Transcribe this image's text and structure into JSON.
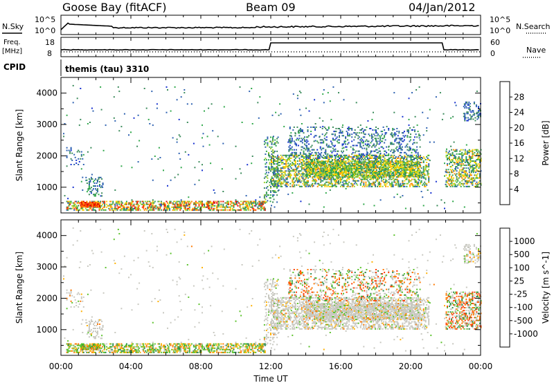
{
  "header": {
    "station": "Goose Bay (fitACF)",
    "beam": "Beam 09",
    "date": "04/Jan/2012"
  },
  "noise_panel": {
    "left_label": "N.Sky",
    "right_label": "N.Search",
    "left_ticks": [
      "10^5",
      "10^0"
    ],
    "right_ticks": [
      "10^5",
      "10^0"
    ]
  },
  "freq_panel": {
    "left_label": "Freq.",
    "left_unit": "[MHz]",
    "left_ticks": [
      "18",
      "8"
    ],
    "right_label": "Nave",
    "right_ticks": [
      "60",
      "0"
    ]
  },
  "cpid": {
    "label": "CPID",
    "value": "themis (tau) 3310"
  },
  "colors": {
    "power": [
      "#1530d0",
      "#2c60b0",
      "#3a8a5a",
      "#2fa84a",
      "#9bd02a",
      "#ffd000",
      "#ff8c00",
      "#ff3a00",
      "#e00000"
    ],
    "velocity": [
      "#1530c0",
      "#2a60b8",
      "#2a8a4a",
      "#5ac22a",
      "#c8c8c0",
      "#ffb000",
      "#ff7800",
      "#ff3a00",
      "#e00000"
    ],
    "gray_scatter": "#c8c8c0"
  },
  "chart_data": [
    {
      "type": "heatmap",
      "name": "power",
      "xlabel": "",
      "ylabel": "Slant Range [km]",
      "x_ticks": [
        "00:00",
        "04:00",
        "08:00",
        "12:00",
        "16:00",
        "20:00",
        "00:00"
      ],
      "x_tick_hours": [
        0,
        4,
        8,
        12,
        16,
        20,
        24
      ],
      "xlim_hours": [
        0,
        24
      ],
      "y_ticks": [
        1000,
        2000,
        3000,
        4000
      ],
      "ylim": [
        180,
        4500
      ],
      "colorbar_label": "Power [dB]",
      "colorbar_ticks": [
        "28",
        "24",
        "20",
        "16",
        "12",
        "8",
        "4"
      ],
      "colorbar_range": [
        0,
        32
      ]
    },
    {
      "type": "heatmap",
      "name": "velocity",
      "xlabel": "Time UT",
      "ylabel": "Slant Range [km]",
      "x_ticks": [
        "00:00",
        "04:00",
        "08:00",
        "12:00",
        "16:00",
        "20:00",
        "00:00"
      ],
      "x_tick_hours": [
        0,
        4,
        8,
        12,
        16,
        20,
        24
      ],
      "xlim_hours": [
        0,
        24
      ],
      "y_ticks": [
        1000,
        2000,
        3000,
        4000
      ],
      "ylim": [
        180,
        4500
      ],
      "colorbar_label": "Velocity [m s^-1]",
      "colorbar_ticks": [
        "1000",
        "500",
        "100",
        "25",
        "-25",
        "-100",
        "-500",
        "-1000"
      ]
    }
  ],
  "echo_regions": [
    {
      "t0": 0.3,
      "t1": 11.7,
      "r0": 250,
      "r1": 550,
      "density": 0.55,
      "p_lo": 6,
      "p_hi": 30,
      "v": "mix_low"
    },
    {
      "t0": 1.1,
      "t1": 2.2,
      "r0": 350,
      "r1": 520,
      "density": 0.9,
      "p_lo": 22,
      "p_hi": 31,
      "v": "mix_low"
    },
    {
      "t0": 0.3,
      "t1": 1.3,
      "r0": 1700,
      "r1": 2200,
      "density": 0.15,
      "p_lo": 2,
      "p_hi": 10,
      "v": "gray"
    },
    {
      "t0": 1.4,
      "t1": 2.4,
      "r0": 700,
      "r1": 1300,
      "density": 0.25,
      "p_lo": 2,
      "p_hi": 14,
      "v": "gray"
    },
    {
      "t0": 12.0,
      "t1": 21.0,
      "r0": 1000,
      "r1": 2000,
      "density": 0.45,
      "p_lo": 4,
      "p_hi": 24,
      "v": "gray"
    },
    {
      "t0": 14.0,
      "t1": 20.5,
      "r0": 1300,
      "r1": 1800,
      "density": 0.65,
      "p_lo": 8,
      "p_hi": 22,
      "v": "gray"
    },
    {
      "t0": 13.0,
      "t1": 20.5,
      "r0": 1900,
      "r1": 2900,
      "density": 0.2,
      "p_lo": 2,
      "p_hi": 12,
      "v": "mix_high"
    },
    {
      "t0": 22.0,
      "t1": 24.0,
      "r0": 1000,
      "r1": 2200,
      "density": 0.45,
      "p_lo": 4,
      "p_hi": 24,
      "v": "mix_high"
    },
    {
      "t0": 23.0,
      "t1": 24.0,
      "r0": 3100,
      "r1": 3700,
      "density": 0.3,
      "p_lo": 2,
      "p_hi": 10,
      "v": "gray"
    },
    {
      "t0": 11.6,
      "t1": 12.4,
      "r0": 500,
      "r1": 2600,
      "density": 0.25,
      "p_lo": 4,
      "p_hi": 16,
      "v": "gray"
    },
    {
      "t0": 0,
      "t1": 24,
      "r0": 300,
      "r1": 4300,
      "density": 0.01,
      "p_lo": 2,
      "p_hi": 14,
      "v": "gray"
    }
  ]
}
